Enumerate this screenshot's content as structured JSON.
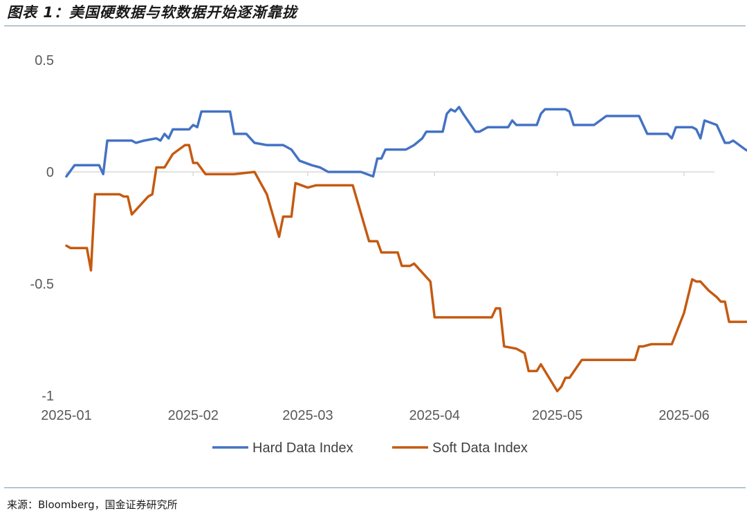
{
  "figure": {
    "title": "图表 1：美国硬数据与软数据开始逐渐靠拢",
    "source": "来源：Bloomberg，国金证券研究所"
  },
  "chart_data": {
    "type": "line",
    "title": "",
    "xlabel": "",
    "ylabel": "",
    "ylim": [
      -1,
      0.5
    ],
    "y_ticks": [
      "0.5",
      "0",
      "-0.5",
      "-1"
    ],
    "x_ticks": [
      {
        "date": "2025-01-01",
        "label": "2025-01"
      },
      {
        "date": "2025-02-01",
        "label": "2025-02"
      },
      {
        "date": "2025-03-01",
        "label": "2025-03"
      },
      {
        "date": "2025-04-01",
        "label": "2025-04"
      },
      {
        "date": "2025-05-01",
        "label": "2025-05"
      },
      {
        "date": "2025-06-01",
        "label": "2025-06"
      }
    ],
    "grid": false,
    "legend": "bottom",
    "series": [
      {
        "name": "Hard Data Index",
        "color": "#4472c4",
        "points": [
          [
            "2025-01-01",
            -0.02
          ],
          [
            "2025-01-03",
            0.03
          ],
          [
            "2025-01-09",
            0.03
          ],
          [
            "2025-01-10",
            -0.01
          ],
          [
            "2025-01-11",
            0.14
          ],
          [
            "2025-01-17",
            0.14
          ],
          [
            "2025-01-18",
            0.13
          ],
          [
            "2025-01-20",
            0.14
          ],
          [
            "2025-01-23",
            0.15
          ],
          [
            "2025-01-24",
            0.14
          ],
          [
            "2025-01-25",
            0.17
          ],
          [
            "2025-01-26",
            0.15
          ],
          [
            "2025-01-27",
            0.19
          ],
          [
            "2025-01-31",
            0.19
          ],
          [
            "2025-02-01",
            0.21
          ],
          [
            "2025-02-02",
            0.2
          ],
          [
            "2025-02-03",
            0.27
          ],
          [
            "2025-02-10",
            0.27
          ],
          [
            "2025-02-11",
            0.17
          ],
          [
            "2025-02-14",
            0.17
          ],
          [
            "2025-02-16",
            0.13
          ],
          [
            "2025-02-19",
            0.12
          ],
          [
            "2025-02-23",
            0.12
          ],
          [
            "2025-02-25",
            0.1
          ],
          [
            "2025-02-27",
            0.05
          ],
          [
            "2025-03-02",
            0.03
          ],
          [
            "2025-03-04",
            0.02
          ],
          [
            "2025-03-06",
            0.0
          ],
          [
            "2025-03-12",
            0.0
          ],
          [
            "2025-03-14",
            0.0
          ],
          [
            "2025-03-17",
            -0.02
          ],
          [
            "2025-03-18",
            0.06
          ],
          [
            "2025-03-19",
            0.06
          ],
          [
            "2025-03-20",
            0.1
          ],
          [
            "2025-03-25",
            0.1
          ],
          [
            "2025-03-27",
            0.12
          ],
          [
            "2025-03-29",
            0.15
          ],
          [
            "2025-03-30",
            0.18
          ],
          [
            "2025-04-03",
            0.18
          ],
          [
            "2025-04-04",
            0.26
          ],
          [
            "2025-04-05",
            0.28
          ],
          [
            "2025-04-06",
            0.27
          ],
          [
            "2025-04-07",
            0.29
          ],
          [
            "2025-04-08",
            0.26
          ],
          [
            "2025-04-11",
            0.18
          ],
          [
            "2025-04-12",
            0.18
          ],
          [
            "2025-04-14",
            0.2
          ],
          [
            "2025-04-19",
            0.2
          ],
          [
            "2025-04-20",
            0.23
          ],
          [
            "2025-04-21",
            0.21
          ],
          [
            "2025-04-26",
            0.21
          ],
          [
            "2025-04-27",
            0.26
          ],
          [
            "2025-04-28",
            0.28
          ],
          [
            "2025-05-03",
            0.28
          ],
          [
            "2025-05-04",
            0.27
          ],
          [
            "2025-05-05",
            0.21
          ],
          [
            "2025-05-06",
            0.21
          ],
          [
            "2025-05-10",
            0.21
          ],
          [
            "2025-05-13",
            0.25
          ],
          [
            "2025-05-21",
            0.25
          ],
          [
            "2025-05-23",
            0.17
          ],
          [
            "2025-05-28",
            0.17
          ],
          [
            "2025-05-29",
            0.15
          ],
          [
            "2025-05-30",
            0.2
          ],
          [
            "2025-06-03",
            0.2
          ],
          [
            "2025-06-04",
            0.19
          ],
          [
            "2025-06-05",
            0.15
          ],
          [
            "2025-06-06",
            0.23
          ],
          [
            "2025-06-09",
            0.21
          ],
          [
            "2025-06-11",
            0.13
          ],
          [
            "2025-06-12",
            0.13
          ],
          [
            "2025-06-13",
            0.14
          ],
          [
            "2025-06-16",
            0.1
          ],
          [
            "2025-06-18",
            0.08
          ]
        ]
      },
      {
        "name": "Soft Data Index",
        "color": "#c55a11",
        "points": [
          [
            "2025-01-01",
            -0.33
          ],
          [
            "2025-01-02",
            -0.34
          ],
          [
            "2025-01-06",
            -0.34
          ],
          [
            "2025-01-07",
            -0.44
          ],
          [
            "2025-01-08",
            -0.1
          ],
          [
            "2025-01-14",
            -0.1
          ],
          [
            "2025-01-15",
            -0.11
          ],
          [
            "2025-01-16",
            -0.11
          ],
          [
            "2025-01-17",
            -0.19
          ],
          [
            "2025-01-21",
            -0.11
          ],
          [
            "2025-01-22",
            -0.1
          ],
          [
            "2025-01-23",
            0.02
          ],
          [
            "2025-01-25",
            0.02
          ],
          [
            "2025-01-27",
            0.08
          ],
          [
            "2025-01-30",
            0.12
          ],
          [
            "2025-01-31",
            0.12
          ],
          [
            "2025-02-01",
            0.04
          ],
          [
            "2025-02-02",
            0.04
          ],
          [
            "2025-02-04",
            -0.01
          ],
          [
            "2025-02-11",
            -0.01
          ],
          [
            "2025-02-16",
            0.0
          ],
          [
            "2025-02-19",
            -0.1
          ],
          [
            "2025-02-22",
            -0.29
          ],
          [
            "2025-02-23",
            -0.2
          ],
          [
            "2025-02-25",
            -0.2
          ],
          [
            "2025-02-26",
            -0.05
          ],
          [
            "2025-03-01",
            -0.07
          ],
          [
            "2025-03-03",
            -0.06
          ],
          [
            "2025-03-12",
            -0.06
          ],
          [
            "2025-03-16",
            -0.31
          ],
          [
            "2025-03-18",
            -0.31
          ],
          [
            "2025-03-19",
            -0.36
          ],
          [
            "2025-03-23",
            -0.36
          ],
          [
            "2025-03-24",
            -0.42
          ],
          [
            "2025-03-26",
            -0.42
          ],
          [
            "2025-03-27",
            -0.41
          ],
          [
            "2025-03-29",
            -0.45
          ],
          [
            "2025-03-31",
            -0.49
          ],
          [
            "2025-04-01",
            -0.65
          ],
          [
            "2025-04-12",
            -0.65
          ],
          [
            "2025-04-15",
            -0.65
          ],
          [
            "2025-04-16",
            -0.61
          ],
          [
            "2025-04-17",
            -0.61
          ],
          [
            "2025-04-18",
            -0.78
          ],
          [
            "2025-04-21",
            -0.79
          ],
          [
            "2025-04-23",
            -0.81
          ],
          [
            "2025-04-24",
            -0.89
          ],
          [
            "2025-04-26",
            -0.89
          ],
          [
            "2025-04-27",
            -0.86
          ],
          [
            "2025-04-28",
            -0.89
          ],
          [
            "2025-05-01",
            -0.98
          ],
          [
            "2025-05-02",
            -0.96
          ],
          [
            "2025-05-03",
            -0.92
          ],
          [
            "2025-05-04",
            -0.92
          ],
          [
            "2025-05-07",
            -0.84
          ],
          [
            "2025-05-18",
            -0.84
          ],
          [
            "2025-05-20",
            -0.84
          ],
          [
            "2025-05-21",
            -0.78
          ],
          [
            "2025-05-22",
            -0.78
          ],
          [
            "2025-05-24",
            -0.77
          ],
          [
            "2025-05-29",
            -0.77
          ],
          [
            "2025-06-01",
            -0.63
          ],
          [
            "2025-06-03",
            -0.48
          ],
          [
            "2025-06-04",
            -0.49
          ],
          [
            "2025-06-05",
            -0.49
          ],
          [
            "2025-06-07",
            -0.53
          ],
          [
            "2025-06-09",
            -0.56
          ],
          [
            "2025-06-10",
            -0.58
          ],
          [
            "2025-06-11",
            -0.58
          ],
          [
            "2025-06-12",
            -0.67
          ],
          [
            "2025-06-18",
            -0.67
          ]
        ]
      }
    ]
  }
}
